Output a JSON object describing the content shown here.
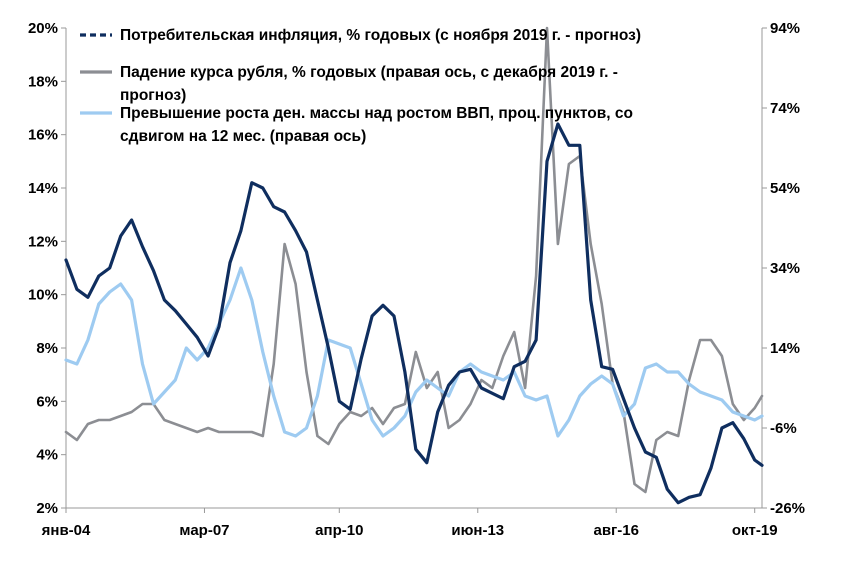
{
  "chart_data": {
    "type": "line",
    "x_ticks": [
      "янв-04",
      "мар-07",
      "апр-10",
      "июн-13",
      "авг-16",
      "окт-19"
    ],
    "x_range": [
      "2004-01",
      "2019-12"
    ],
    "y_left": {
      "ticks": [
        "2%",
        "4%",
        "6%",
        "8%",
        "10%",
        "12%",
        "14%",
        "16%",
        "18%",
        "20%"
      ],
      "range": [
        2,
        20
      ]
    },
    "y_right": {
      "ticks": [
        "-26%",
        "-6%",
        "14%",
        "34%",
        "54%",
        "74%",
        "94%"
      ],
      "range": [
        -26,
        94
      ]
    },
    "grid": false,
    "legend_placement": "top",
    "series": [
      {
        "name": "Потребительская инфляция, % годовых (с ноября 2019 г. - прогноз)",
        "legend_lines": [
          "Потребительская инфляция, % годовых (с ноября 2019 г. - прогноз)"
        ],
        "axis": "left",
        "color": "#0f2e5f",
        "dashed_legend": true,
        "points": [
          [
            "2004-01",
            11.3
          ],
          [
            "2004-04",
            10.2
          ],
          [
            "2004-07",
            9.9
          ],
          [
            "2004-10",
            10.7
          ],
          [
            "2005-01",
            11.0
          ],
          [
            "2005-04",
            12.2
          ],
          [
            "2005-07",
            12.8
          ],
          [
            "2005-10",
            11.8
          ],
          [
            "2006-01",
            10.9
          ],
          [
            "2006-04",
            9.8
          ],
          [
            "2006-07",
            9.4
          ],
          [
            "2006-10",
            8.9
          ],
          [
            "2007-01",
            8.4
          ],
          [
            "2007-04",
            7.7
          ],
          [
            "2007-07",
            8.8
          ],
          [
            "2007-10",
            11.2
          ],
          [
            "2008-01",
            12.4
          ],
          [
            "2008-04",
            14.2
          ],
          [
            "2008-07",
            14.0
          ],
          [
            "2008-10",
            13.3
          ],
          [
            "2009-01",
            13.1
          ],
          [
            "2009-04",
            12.4
          ],
          [
            "2009-07",
            11.6
          ],
          [
            "2009-10",
            9.8
          ],
          [
            "2010-01",
            8.0
          ],
          [
            "2010-04",
            6.0
          ],
          [
            "2010-07",
            5.7
          ],
          [
            "2010-10",
            7.6
          ],
          [
            "2011-01",
            9.2
          ],
          [
            "2011-04",
            9.6
          ],
          [
            "2011-07",
            9.2
          ],
          [
            "2011-10",
            7.1
          ],
          [
            "2012-01",
            4.2
          ],
          [
            "2012-04",
            3.7
          ],
          [
            "2012-07",
            5.6
          ],
          [
            "2012-10",
            6.6
          ],
          [
            "2013-01",
            7.1
          ],
          [
            "2013-04",
            7.2
          ],
          [
            "2013-07",
            6.5
          ],
          [
            "2013-10",
            6.3
          ],
          [
            "2014-01",
            6.1
          ],
          [
            "2014-04",
            7.3
          ],
          [
            "2014-07",
            7.5
          ],
          [
            "2014-10",
            8.3
          ],
          [
            "2015-01",
            15.0
          ],
          [
            "2015-04",
            16.4
          ],
          [
            "2015-07",
            15.6
          ],
          [
            "2015-10",
            15.6
          ],
          [
            "2016-01",
            9.8
          ],
          [
            "2016-04",
            7.3
          ],
          [
            "2016-07",
            7.2
          ],
          [
            "2016-10",
            6.1
          ],
          [
            "2017-01",
            5.0
          ],
          [
            "2017-04",
            4.1
          ],
          [
            "2017-07",
            3.9
          ],
          [
            "2017-10",
            2.7
          ],
          [
            "2018-01",
            2.2
          ],
          [
            "2018-04",
            2.4
          ],
          [
            "2018-07",
            2.5
          ],
          [
            "2018-10",
            3.5
          ],
          [
            "2019-01",
            5.0
          ],
          [
            "2019-04",
            5.2
          ],
          [
            "2019-07",
            4.6
          ],
          [
            "2019-10",
            3.8
          ],
          [
            "2019-12",
            3.6
          ]
        ]
      },
      {
        "name": "Падение курса рубля, % годовых (правая ось, с декабря 2019 г. - прогноз)",
        "legend_lines": [
          "Падение курса рубля, % годовых (правая ось, с декабря 2019 г. -",
          "прогноз)"
        ],
        "axis": "right",
        "color": "#8c8e93",
        "dashed_legend": false,
        "points": [
          [
            "2004-01",
            -7
          ],
          [
            "2004-04",
            -9
          ],
          [
            "2004-07",
            -5
          ],
          [
            "2004-10",
            -4
          ],
          [
            "2005-01",
            -4
          ],
          [
            "2005-04",
            -3
          ],
          [
            "2005-07",
            -2
          ],
          [
            "2005-10",
            0
          ],
          [
            "2006-01",
            0
          ],
          [
            "2006-04",
            -4
          ],
          [
            "2006-07",
            -5
          ],
          [
            "2006-10",
            -6
          ],
          [
            "2007-01",
            -7
          ],
          [
            "2007-04",
            -6
          ],
          [
            "2007-07",
            -7
          ],
          [
            "2007-10",
            -7
          ],
          [
            "2008-01",
            -7
          ],
          [
            "2008-04",
            -7
          ],
          [
            "2008-07",
            -8
          ],
          [
            "2008-10",
            10
          ],
          [
            "2009-01",
            40
          ],
          [
            "2009-04",
            30
          ],
          [
            "2009-07",
            8
          ],
          [
            "2009-10",
            -8
          ],
          [
            "2010-01",
            -10
          ],
          [
            "2010-04",
            -5
          ],
          [
            "2010-07",
            -2
          ],
          [
            "2010-10",
            -3
          ],
          [
            "2011-01",
            -1
          ],
          [
            "2011-04",
            -5
          ],
          [
            "2011-07",
            -1
          ],
          [
            "2011-10",
            0
          ],
          [
            "2012-01",
            13
          ],
          [
            "2012-04",
            4
          ],
          [
            "2012-07",
            8
          ],
          [
            "2012-10",
            -6
          ],
          [
            "2013-01",
            -4
          ],
          [
            "2013-04",
            0
          ],
          [
            "2013-07",
            6
          ],
          [
            "2013-10",
            4
          ],
          [
            "2014-01",
            12
          ],
          [
            "2014-04",
            18
          ],
          [
            "2014-07",
            4
          ],
          [
            "2014-10",
            32
          ],
          [
            "2015-01",
            94
          ],
          [
            "2015-04",
            40
          ],
          [
            "2015-07",
            60
          ],
          [
            "2015-10",
            62
          ],
          [
            "2016-01",
            40
          ],
          [
            "2016-04",
            25
          ],
          [
            "2016-07",
            5
          ],
          [
            "2016-10",
            -2
          ],
          [
            "2017-01",
            -20
          ],
          [
            "2017-04",
            -22
          ],
          [
            "2017-07",
            -9
          ],
          [
            "2017-10",
            -7
          ],
          [
            "2018-01",
            -8
          ],
          [
            "2018-04",
            6
          ],
          [
            "2018-07",
            16
          ],
          [
            "2018-10",
            16
          ],
          [
            "2019-01",
            12
          ],
          [
            "2019-04",
            0
          ],
          [
            "2019-07",
            -4
          ],
          [
            "2019-10",
            -1
          ],
          [
            "2019-12",
            2
          ]
        ]
      },
      {
        "name": "Превышение роста ден. массы над ростом ВВП, проц. пунктов, со сдвигом на 12 мес. (правая ось)",
        "legend_lines": [
          "Превышение роста ден. массы над ростом ВВП, проц. пунктов, со",
          "сдвигом на 12 мес. (правая ось)"
        ],
        "axis": "right",
        "color": "#9ecbf1",
        "dashed_legend": false,
        "points": [
          [
            "2004-01",
            11
          ],
          [
            "2004-04",
            10
          ],
          [
            "2004-07",
            16
          ],
          [
            "2004-10",
            25
          ],
          [
            "2005-01",
            28
          ],
          [
            "2005-04",
            30
          ],
          [
            "2005-07",
            26
          ],
          [
            "2005-10",
            10
          ],
          [
            "2006-01",
            0
          ],
          [
            "2006-04",
            3
          ],
          [
            "2006-07",
            6
          ],
          [
            "2006-10",
            14
          ],
          [
            "2007-01",
            11
          ],
          [
            "2007-04",
            14
          ],
          [
            "2007-07",
            20
          ],
          [
            "2007-10",
            26
          ],
          [
            "2008-01",
            34
          ],
          [
            "2008-04",
            26
          ],
          [
            "2008-07",
            13
          ],
          [
            "2008-10",
            2
          ],
          [
            "2009-01",
            -7
          ],
          [
            "2009-04",
            -8
          ],
          [
            "2009-07",
            -6
          ],
          [
            "2009-10",
            2
          ],
          [
            "2010-01",
            16
          ],
          [
            "2010-04",
            15
          ],
          [
            "2010-07",
            14
          ],
          [
            "2010-10",
            5
          ],
          [
            "2011-01",
            -4
          ],
          [
            "2011-04",
            -8
          ],
          [
            "2011-07",
            -6
          ],
          [
            "2011-10",
            -3
          ],
          [
            "2012-01",
            3
          ],
          [
            "2012-04",
            6
          ],
          [
            "2012-07",
            4
          ],
          [
            "2012-10",
            2
          ],
          [
            "2013-01",
            8
          ],
          [
            "2013-04",
            10
          ],
          [
            "2013-07",
            8
          ],
          [
            "2013-10",
            7
          ],
          [
            "2014-01",
            6
          ],
          [
            "2014-04",
            8
          ],
          [
            "2014-07",
            2
          ],
          [
            "2014-10",
            1
          ],
          [
            "2015-01",
            2
          ],
          [
            "2015-04",
            -8
          ],
          [
            "2015-07",
            -4
          ],
          [
            "2015-10",
            2
          ],
          [
            "2016-01",
            5
          ],
          [
            "2016-04",
            7
          ],
          [
            "2016-07",
            5
          ],
          [
            "2016-10",
            -3
          ],
          [
            "2017-01",
            0
          ],
          [
            "2017-04",
            9
          ],
          [
            "2017-07",
            10
          ],
          [
            "2017-10",
            8
          ],
          [
            "2018-01",
            8
          ],
          [
            "2018-04",
            5
          ],
          [
            "2018-07",
            3
          ],
          [
            "2018-10",
            2
          ],
          [
            "2019-01",
            1
          ],
          [
            "2019-04",
            -2
          ],
          [
            "2019-07",
            -3
          ],
          [
            "2019-10",
            -4
          ],
          [
            "2019-12",
            -3
          ]
        ]
      }
    ]
  }
}
